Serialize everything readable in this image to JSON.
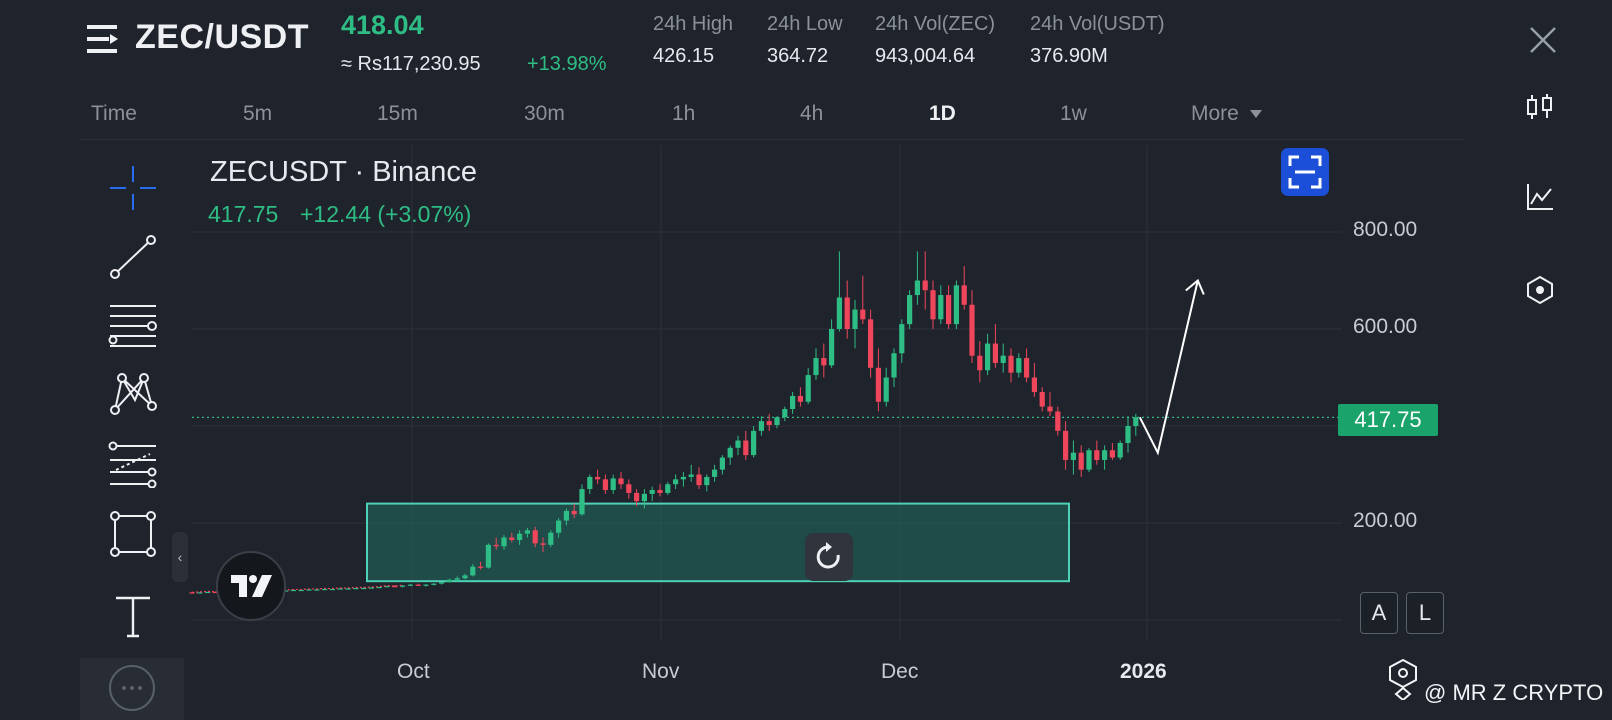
{
  "header": {
    "pair": "ZEC/USDT",
    "last_price": "418.04",
    "fiat_price": "≈ Rs117,230.95",
    "change_pct": "+13.98%",
    "stats": [
      {
        "label": "24h High",
        "value": "426.15"
      },
      {
        "label": "24h Low",
        "value": "364.72"
      },
      {
        "label": "24h Vol(ZEC)",
        "value": "943,004.64"
      },
      {
        "label": "24h Vol(USDT)",
        "value": "376.90M"
      }
    ]
  },
  "timeframes": [
    "Time",
    "5m",
    "15m",
    "30m",
    "1h",
    "4h",
    "1D",
    "1w",
    "More"
  ],
  "active_timeframe": "1D",
  "chart_overlay": {
    "symbol_title": "ZECUSDT · Binance",
    "price": "417.75",
    "change": "+12.44 (+3.07%)",
    "current_price_tag": "417.75"
  },
  "scale_buttons": {
    "auto": "A",
    "log": "L"
  },
  "watermark": "@ MR Z CRYPTO",
  "left_toolbar": [
    "crosshair-icon",
    "trend-line-icon",
    "horizontal-lines-icon",
    "pattern-icon",
    "fib-levels-icon",
    "rectangle-icon",
    "text-icon"
  ],
  "right_sidebar": [
    "candlestick-icon",
    "indicators-icon",
    "settings-hex-icon"
  ],
  "colors": {
    "up": "#2ebd85",
    "down": "#f0465c",
    "accent": "#1c4fd8",
    "zone": "#1f6e63"
  },
  "chart_data": {
    "type": "candlestick",
    "y_axis_ticks": [
      "800.00",
      "600.00",
      "200.00"
    ],
    "x_axis_ticks": [
      "Oct",
      "Nov",
      "Dec",
      "2026"
    ],
    "current_price": 417.75,
    "ohlc": [
      [
        57,
        58,
        55,
        56
      ],
      [
        56,
        57,
        55,
        57
      ],
      [
        57,
        58,
        56,
        58
      ],
      [
        58,
        59,
        57,
        57
      ],
      [
        57,
        58,
        56,
        58
      ],
      [
        58,
        59,
        57,
        59
      ],
      [
        59,
        60,
        58,
        58
      ],
      [
        58,
        59,
        57,
        59
      ],
      [
        59,
        60,
        58,
        59
      ],
      [
        59,
        60,
        58,
        60
      ],
      [
        60,
        61,
        59,
        60
      ],
      [
        60,
        61,
        59,
        61
      ],
      [
        61,
        62,
        60,
        61
      ],
      [
        61,
        62,
        60,
        62
      ],
      [
        62,
        63,
        61,
        62
      ],
      [
        62,
        63,
        61,
        63
      ],
      [
        63,
        64,
        62,
        63
      ],
      [
        63,
        64,
        62,
        64
      ],
      [
        64,
        65,
        63,
        64
      ],
      [
        64,
        65,
        63,
        65
      ],
      [
        65,
        66,
        64,
        65
      ],
      [
        65,
        66,
        64,
        66
      ],
      [
        66,
        67,
        65,
        66
      ],
      [
        66,
        67,
        65,
        67
      ],
      [
        67,
        68,
        66,
        68
      ],
      [
        68,
        69,
        67,
        70
      ],
      [
        70,
        72,
        68,
        69
      ],
      [
        69,
        72,
        67,
        71
      ],
      [
        71,
        74,
        70,
        73
      ],
      [
        73,
        75,
        70,
        71
      ],
      [
        71,
        74,
        69,
        73
      ],
      [
        73,
        76,
        71,
        75
      ],
      [
        75,
        78,
        73,
        78
      ],
      [
        78,
        85,
        77,
        83
      ],
      [
        83,
        90,
        80,
        86
      ],
      [
        86,
        95,
        84,
        92
      ],
      [
        92,
        115,
        90,
        110
      ],
      [
        110,
        120,
        104,
        108
      ],
      [
        108,
        158,
        106,
        155
      ],
      [
        155,
        170,
        145,
        152
      ],
      [
        152,
        175,
        145,
        170
      ],
      [
        170,
        180,
        160,
        165
      ],
      [
        165,
        185,
        155,
        178
      ],
      [
        178,
        190,
        170,
        185
      ],
      [
        185,
        192,
        150,
        158
      ],
      [
        158,
        170,
        140,
        155
      ],
      [
        155,
        185,
        150,
        180
      ],
      [
        180,
        210,
        170,
        205
      ],
      [
        205,
        230,
        195,
        225
      ],
      [
        225,
        240,
        210,
        218
      ],
      [
        218,
        280,
        215,
        270
      ],
      [
        270,
        300,
        260,
        295
      ],
      [
        295,
        310,
        280,
        290
      ],
      [
        290,
        300,
        260,
        268
      ],
      [
        268,
        300,
        260,
        292
      ],
      [
        292,
        305,
        270,
        280
      ],
      [
        280,
        290,
        250,
        262
      ],
      [
        262,
        270,
        235,
        245
      ],
      [
        245,
        270,
        230,
        260
      ],
      [
        260,
        275,
        245,
        268
      ],
      [
        268,
        280,
        255,
        262
      ],
      [
        262,
        285,
        258,
        280
      ],
      [
        280,
        300,
        270,
        290
      ],
      [
        290,
        305,
        275,
        295
      ],
      [
        295,
        320,
        285,
        300
      ],
      [
        300,
        315,
        270,
        278
      ],
      [
        278,
        300,
        265,
        295
      ],
      [
        295,
        320,
        285,
        310
      ],
      [
        310,
        340,
        300,
        335
      ],
      [
        335,
        360,
        320,
        355
      ],
      [
        355,
        380,
        340,
        370
      ],
      [
        370,
        390,
        330,
        340
      ],
      [
        340,
        400,
        335,
        390
      ],
      [
        390,
        420,
        380,
        410
      ],
      [
        410,
        425,
        390,
        402
      ],
      [
        402,
        420,
        395,
        418
      ],
      [
        418,
        440,
        410,
        435
      ],
      [
        435,
        470,
        425,
        462
      ],
      [
        462,
        480,
        440,
        450
      ],
      [
        450,
        520,
        445,
        505
      ],
      [
        505,
        560,
        495,
        540
      ],
      [
        540,
        570,
        500,
        525
      ],
      [
        525,
        620,
        520,
        600
      ],
      [
        600,
        760,
        595,
        665
      ],
      [
        665,
        700,
        580,
        600
      ],
      [
        600,
        660,
        560,
        640
      ],
      [
        640,
        710,
        610,
        620
      ],
      [
        620,
        640,
        500,
        520
      ],
      [
        520,
        560,
        430,
        450
      ],
      [
        450,
        520,
        440,
        500
      ],
      [
        500,
        560,
        480,
        550
      ],
      [
        550,
        620,
        530,
        610
      ],
      [
        610,
        680,
        600,
        670
      ],
      [
        670,
        760,
        650,
        700
      ],
      [
        700,
        760,
        640,
        680
      ],
      [
        680,
        700,
        600,
        620
      ],
      [
        620,
        690,
        610,
        670
      ],
      [
        670,
        690,
        600,
        610
      ],
      [
        610,
        700,
        600,
        690
      ],
      [
        690,
        730,
        640,
        650
      ],
      [
        650,
        680,
        530,
        545
      ],
      [
        545,
        575,
        490,
        515
      ],
      [
        515,
        590,
        505,
        570
      ],
      [
        570,
        610,
        520,
        530
      ],
      [
        530,
        570,
        510,
        545
      ],
      [
        545,
        560,
        490,
        510
      ],
      [
        510,
        550,
        500,
        540
      ],
      [
        540,
        560,
        490,
        500
      ],
      [
        500,
        530,
        460,
        470
      ],
      [
        470,
        480,
        430,
        440
      ],
      [
        440,
        470,
        420,
        430
      ],
      [
        430,
        440,
        380,
        390
      ],
      [
        390,
        410,
        310,
        330
      ],
      [
        330,
        370,
        300,
        345
      ],
      [
        345,
        360,
        295,
        310
      ],
      [
        310,
        355,
        305,
        350
      ],
      [
        350,
        370,
        320,
        330
      ],
      [
        330,
        360,
        310,
        350
      ],
      [
        350,
        365,
        330,
        335
      ],
      [
        335,
        370,
        330,
        365
      ],
      [
        365,
        420,
        345,
        400
      ],
      [
        400,
        425,
        380,
        418
      ]
    ],
    "projection": [
      [
        418,
        345
      ],
      [
        430,
        700
      ]
    ],
    "zone": [
      80,
      240
    ]
  }
}
